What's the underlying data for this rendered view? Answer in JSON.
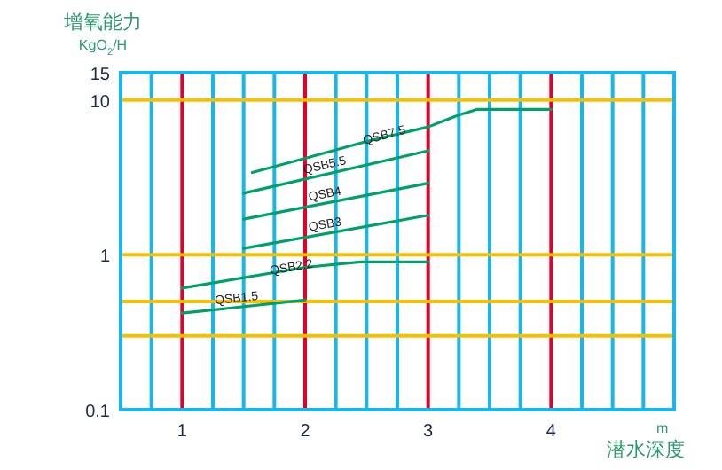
{
  "chart_data": {
    "type": "line",
    "ylabel": "增氧能力 KgO$_{2}$/H",
    "xlabel": "m 潜水深度",
    "log": "y",
    "grid": true,
    "marker": "none",
    "line_style": "solid",
    "legend": false,
    "xlim": [
      0.5,
      5
    ],
    "ylim": [
      0.1,
      15
    ],
    "xticks": [
      {
        "value": 0.75,
        "label": null
      },
      1,
      {
        "value": 1.25,
        "label": null
      },
      {
        "value": 1.5,
        "label": null
      },
      {
        "value": 1.75,
        "label": null
      },
      2,
      {
        "value": 2.25,
        "label": null
      },
      {
        "value": 2.5,
        "label": null
      },
      {
        "value": 2.75,
        "label": null
      },
      3,
      {
        "value": 3.25,
        "label": null
      },
      {
        "value": 3.5,
        "label": null
      },
      {
        "value": 3.75,
        "label": null
      },
      4,
      {
        "value": 4.25,
        "label": null
      },
      {
        "value": 4.5,
        "label": null
      },
      {
        "value": 4.75,
        "label": null
      }
    ],
    "yticks": [
      0.1,
      {
        "value": 0.3,
        "label": null
      },
      {
        "value": 0.5,
        "label": null
      },
      1,
      10,
      15
    ],
    "series": [
      {
        "name": "QSB7.5",
        "color": "#00a06a",
        "x": [
          1.57,
          2,
          2.5,
          3,
          3.25,
          3.4,
          4
        ],
        "values": [
          3.4,
          4.2,
          5.4,
          6.7,
          8,
          8.7,
          8.7
        ]
      },
      {
        "name": "QSB5.5",
        "color": "#00a06a",
        "x": [
          1.5,
          3
        ],
        "values": [
          2.5,
          4.7
        ]
      },
      {
        "name": "QSB4",
        "color": "#00a06a",
        "x": [
          1.5,
          3
        ],
        "values": [
          1.7,
          2.9
        ]
      },
      {
        "name": "QSB3",
        "color": "#00a06a",
        "x": [
          1.5,
          3
        ],
        "values": [
          1.1,
          1.8
        ]
      },
      {
        "name": "QSB2.2",
        "color": "#00a06a",
        "x": [
          1,
          2,
          2.45,
          3
        ],
        "values": [
          0.61,
          0.83,
          0.9,
          0.9
        ]
      },
      {
        "name": "QSB1.5",
        "color": "#00a06a",
        "x": [
          1,
          2
        ],
        "values": [
          0.42,
          0.51
        ]
      }
    ]
  }
}
